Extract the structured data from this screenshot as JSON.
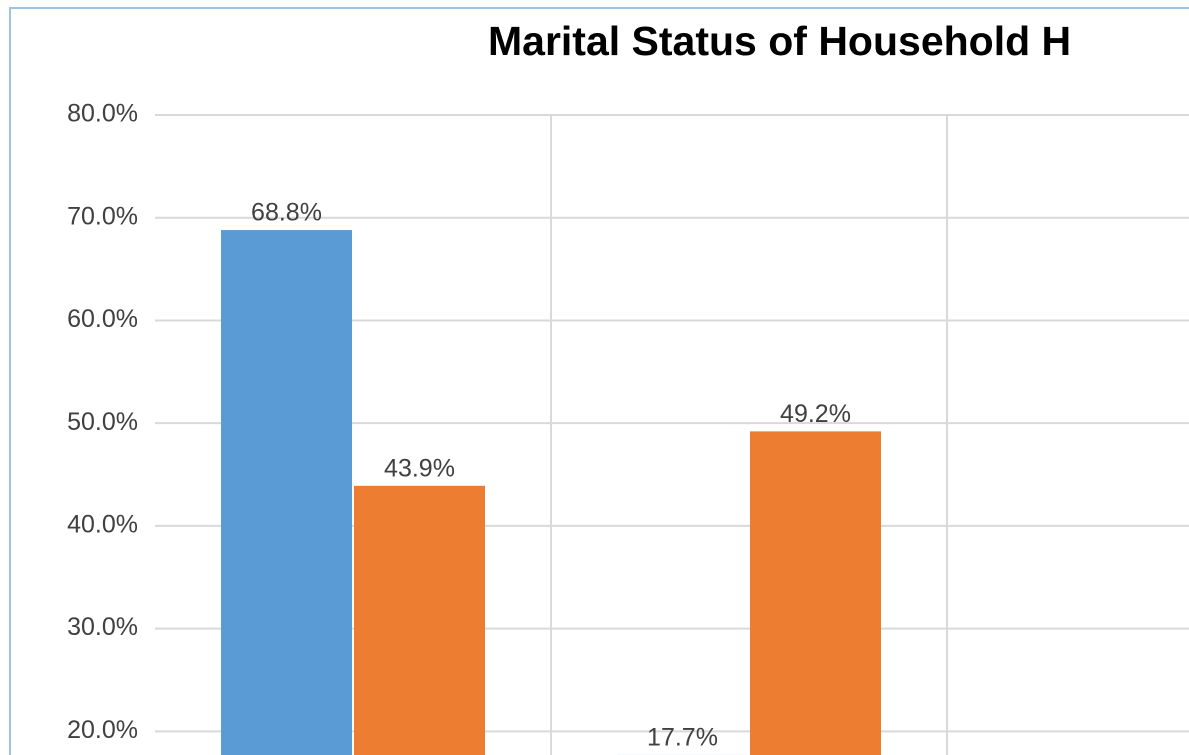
{
  "chart_data": {
    "type": "bar",
    "title": "Marital Status of Household H",
    "categories": [
      null,
      null
    ],
    "series": [
      {
        "color": "#5b9bd5",
        "values": [
          68.8,
          17.7
        ],
        "value_labels": [
          "68.8%",
          "17.7%"
        ]
      },
      {
        "color": "#ed7d31",
        "values": [
          43.9,
          49.2
        ],
        "value_labels": [
          "43.9%",
          "49.2%"
        ]
      }
    ],
    "ylim": [
      17.5,
      80
    ],
    "yticks": [
      {
        "value": 20,
        "label": "20.0%"
      },
      {
        "value": 30,
        "label": "30.0%"
      },
      {
        "value": 40,
        "label": "40.0%"
      },
      {
        "value": 50,
        "label": "50.0%"
      },
      {
        "value": 60,
        "label": "60.0%"
      },
      {
        "value": 70,
        "label": "70.0%"
      },
      {
        "value": 80,
        "label": "80.0%"
      }
    ],
    "grid": true
  }
}
